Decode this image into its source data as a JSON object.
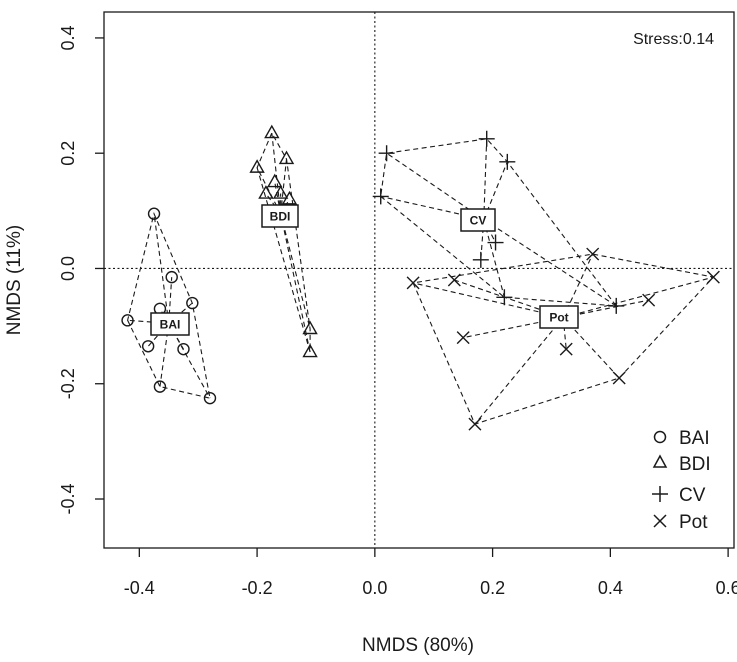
{
  "chart_data": {
    "type": "scatter",
    "title": "",
    "xlabel": "NMDS (80%)",
    "ylabel": "NMDS (11%)",
    "xlim": [
      -0.46,
      0.61
    ],
    "ylim": [
      -0.485,
      0.445
    ],
    "xticks": [
      -0.4,
      -0.2,
      0.0,
      0.2,
      0.4,
      0.6
    ],
    "xtick_labels": [
      "-0.4",
      "-0.2",
      "0.0",
      "0.2",
      "0.4",
      "0.6"
    ],
    "yticks": [
      -0.4,
      -0.2,
      0.0,
      0.2,
      0.4
    ],
    "ytick_labels": [
      "-0.4",
      "-0.2",
      "0.0",
      "0.2",
      "0.4"
    ],
    "annotation": "Stress:0.14",
    "reference_lines": {
      "x": 0,
      "y": 0
    },
    "legend_position": "bottom-right",
    "series": [
      {
        "name": "BAI",
        "marker": "circle",
        "centroid": [
          -0.35,
          -0.095
        ],
        "centroid_label": "BAI",
        "points": [
          [
            -0.375,
            0.095
          ],
          [
            -0.345,
            -0.015
          ],
          [
            -0.42,
            -0.09
          ],
          [
            -0.365,
            -0.07
          ],
          [
            -0.31,
            -0.06
          ],
          [
            -0.385,
            -0.135
          ],
          [
            -0.325,
            -0.14
          ],
          [
            -0.365,
            -0.205
          ],
          [
            -0.28,
            -0.225
          ]
        ]
      },
      {
        "name": "BDI",
        "marker": "triangle",
        "centroid": [
          -0.16,
          0.095
        ],
        "centroid_label": "BDI",
        "points": [
          [
            -0.175,
            0.235
          ],
          [
            -0.2,
            0.175
          ],
          [
            -0.15,
            0.19
          ],
          [
            -0.17,
            0.15
          ],
          [
            -0.185,
            0.13
          ],
          [
            -0.145,
            0.12
          ],
          [
            -0.16,
            0.13
          ],
          [
            -0.11,
            -0.105
          ],
          [
            -0.11,
            -0.145
          ]
        ]
      },
      {
        "name": "CV",
        "marker": "plus",
        "centroid": [
          0.185,
          0.085
        ],
        "centroid_label": "CV",
        "points": [
          [
            0.19,
            0.225
          ],
          [
            0.02,
            0.2
          ],
          [
            0.225,
            0.185
          ],
          [
            0.01,
            0.125
          ],
          [
            0.205,
            0.045
          ],
          [
            0.18,
            0.015
          ],
          [
            0.22,
            -0.05
          ],
          [
            0.41,
            -0.065
          ]
        ]
      },
      {
        "name": "Pot",
        "marker": "cross",
        "centroid": [
          0.32,
          -0.085
        ],
        "centroid_label": "Pot",
        "points": [
          [
            0.37,
            0.025
          ],
          [
            0.575,
            -0.015
          ],
          [
            0.065,
            -0.025
          ],
          [
            0.135,
            -0.02
          ],
          [
            0.465,
            -0.055
          ],
          [
            0.15,
            -0.12
          ],
          [
            0.325,
            -0.14
          ],
          [
            0.415,
            -0.19
          ],
          [
            0.17,
            -0.27
          ]
        ]
      }
    ]
  }
}
